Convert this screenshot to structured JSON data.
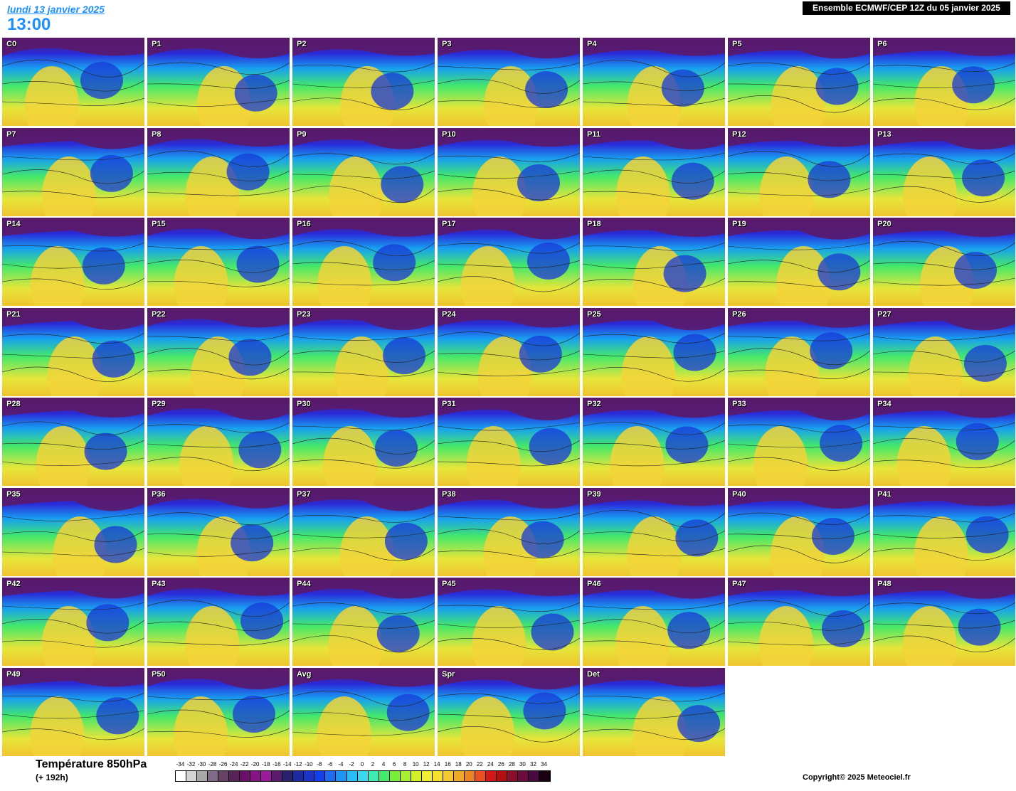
{
  "header": {
    "date": "lundi 13 janvier 2025",
    "time": "13:00",
    "run_title": "Ensemble ECMWF/CEP 12Z du 05 janvier 2025"
  },
  "panels": [
    "C0",
    "P1",
    "P2",
    "P3",
    "P4",
    "P5",
    "P6",
    "P7",
    "P8",
    "P9",
    "P10",
    "P11",
    "P12",
    "P13",
    "P14",
    "P15",
    "P16",
    "P17",
    "P18",
    "P19",
    "P20",
    "P21",
    "P22",
    "P23",
    "P24",
    "P25",
    "P26",
    "P27",
    "P28",
    "P29",
    "P30",
    "P31",
    "P32",
    "P33",
    "P34",
    "P35",
    "P36",
    "P37",
    "P38",
    "P39",
    "P40",
    "P41",
    "P42",
    "P43",
    "P44",
    "P45",
    "P46",
    "P47",
    "P48",
    "P49",
    "P50",
    "Avg",
    "Spr",
    "Det"
  ],
  "legend": {
    "title": "Température 850hPa",
    "hours": "(+ 192h)",
    "values": [
      "-34",
      "-32",
      "-30",
      "-28",
      "-26",
      "-24",
      "-22",
      "-20",
      "-18",
      "-16",
      "-14",
      "-12",
      "-10",
      "-8",
      "-6",
      "-4",
      "-2",
      "0",
      "2",
      "4",
      "6",
      "8",
      "10",
      "12",
      "14",
      "16",
      "18",
      "20",
      "22",
      "24",
      "26",
      "28",
      "30",
      "32",
      "34"
    ],
    "colors": [
      "#ffffff",
      "#d4d4d4",
      "#a8a8a8",
      "#7f6a88",
      "#664266",
      "#562356",
      "#6b0f6b",
      "#851585",
      "#9b1c9b",
      "#5a1a6e",
      "#2a2070",
      "#1e2aa0",
      "#1a34c8",
      "#1440e8",
      "#1e6cf0",
      "#1e94f4",
      "#28bcf8",
      "#3ad8f0",
      "#40e8b4",
      "#44e86a",
      "#78ee3a",
      "#a8f032",
      "#d4f02a",
      "#f0f030",
      "#f5e030",
      "#f5c830",
      "#f0a828",
      "#ec8424",
      "#e85020",
      "#d41818",
      "#b01010",
      "#8c0e2a",
      "#6a0c3e",
      "#4a0a40",
      "#1a0010"
    ]
  },
  "copyright": "Copyright© 2025 Meteociel.fr"
}
